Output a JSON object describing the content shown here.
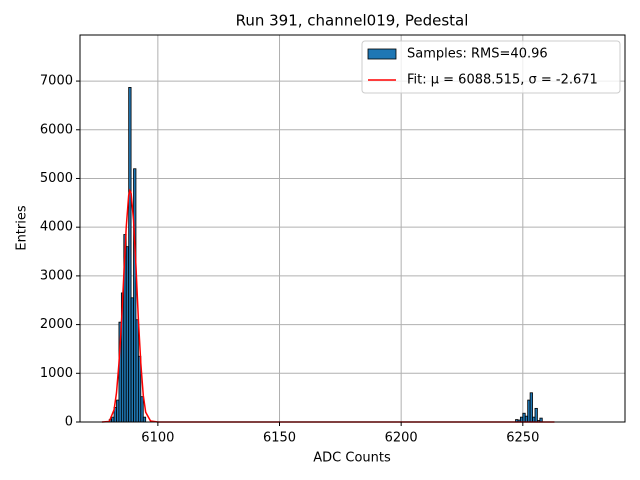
{
  "chart_data": {
    "type": "histogram",
    "title": "Run 391, channel019, Pedestal",
    "xlabel": "ADC Counts",
    "ylabel": "Entries",
    "xlim": [
      6068,
      6292
    ],
    "ylim": [
      0,
      7946
    ],
    "xticks": [
      6100,
      6150,
      6200,
      6250
    ],
    "yticks": [
      0,
      1000,
      2000,
      3000,
      4000,
      5000,
      6000,
      7000
    ],
    "grid": true,
    "legend": "upper right",
    "series": [
      {
        "name": "Samples: RMS=40.96",
        "type": "histogram",
        "color": "#1f77b4",
        "bins": [
          6080,
          6081,
          6082,
          6083,
          6084,
          6085,
          6086,
          6087,
          6088,
          6089,
          6090,
          6091,
          6092,
          6093,
          6094,
          6095,
          6247,
          6248,
          6249,
          6250,
          6251,
          6252,
          6253,
          6254,
          6255,
          6256,
          6257,
          6258
        ],
        "values": [
          50,
          100,
          300,
          450,
          2050,
          2650,
          3850,
          3600,
          6870,
          2550,
          5200,
          2100,
          1350,
          520,
          100,
          0,
          50,
          40,
          100,
          180,
          120,
          450,
          600,
          100,
          280,
          30,
          80
        ]
      },
      {
        "name": "Fit: μ = 6088.515, σ = -2.671",
        "type": "line",
        "color": "#ff0000",
        "x": [
          6077,
          6080,
          6082,
          6083,
          6084,
          6085,
          6086,
          6087,
          6088,
          6088.5,
          6089,
          6090,
          6091,
          6092,
          6093,
          6094,
          6095,
          6097,
          6100,
          6263
        ],
        "values": [
          0,
          10,
          250,
          600,
          1200,
          2000,
          3000,
          4000,
          4650,
          4750,
          4700,
          4150,
          3200,
          2100,
          1200,
          550,
          200,
          20,
          0,
          0
        ]
      }
    ]
  }
}
